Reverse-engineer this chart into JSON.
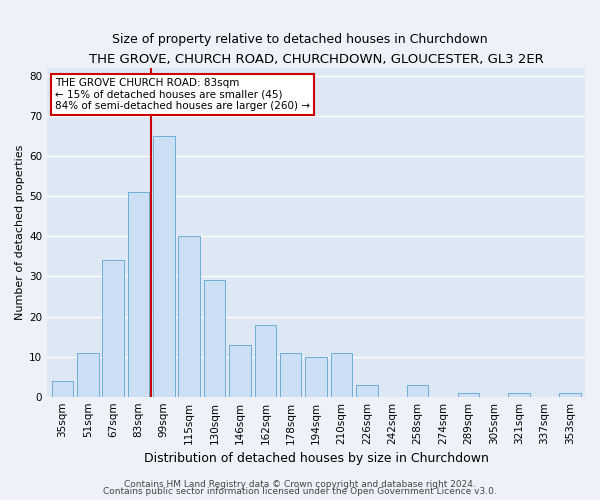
{
  "title": "THE GROVE, CHURCH ROAD, CHURCHDOWN, GLOUCESTER, GL3 2ER",
  "subtitle": "Size of property relative to detached houses in Churchdown",
  "xlabel": "Distribution of detached houses by size in Churchdown",
  "ylabel": "Number of detached properties",
  "bar_labels": [
    "35sqm",
    "51sqm",
    "67sqm",
    "83sqm",
    "99sqm",
    "115sqm",
    "130sqm",
    "146sqm",
    "162sqm",
    "178sqm",
    "194sqm",
    "210sqm",
    "226sqm",
    "242sqm",
    "258sqm",
    "274sqm",
    "289sqm",
    "305sqm",
    "321sqm",
    "337sqm",
    "353sqm"
  ],
  "bar_values": [
    4,
    11,
    34,
    51,
    65,
    40,
    29,
    13,
    18,
    11,
    10,
    11,
    3,
    0,
    3,
    0,
    1,
    0,
    1,
    0,
    1
  ],
  "bar_color": "#cddff5",
  "bar_edgecolor": "#6aaed6",
  "vline_x": 3.5,
  "vline_color": "#cc0000",
  "annotation_title": "THE GROVE CHURCH ROAD: 83sqm",
  "annotation_line1": "← 15% of detached houses are smaller (45)",
  "annotation_line2": "84% of semi-detached houses are larger (260) →",
  "annotation_box_edgecolor": "#cc0000",
  "annotation_box_facecolor": "#ffffff",
  "ylim": [
    0,
    82
  ],
  "yticks": [
    0,
    10,
    20,
    30,
    40,
    50,
    60,
    70,
    80
  ],
  "footer1": "Contains HM Land Registry data © Crown copyright and database right 2024.",
  "footer2": "Contains public sector information licensed under the Open Government Licence v3.0.",
  "background_color": "#eef2f8",
  "plot_background_color": "#dde8f4",
  "grid_color": "#ffffff",
  "title_fontsize": 9.5,
  "subtitle_fontsize": 9,
  "xlabel_fontsize": 9,
  "ylabel_fontsize": 8,
  "tick_fontsize": 7.5,
  "footer_fontsize": 6.5
}
